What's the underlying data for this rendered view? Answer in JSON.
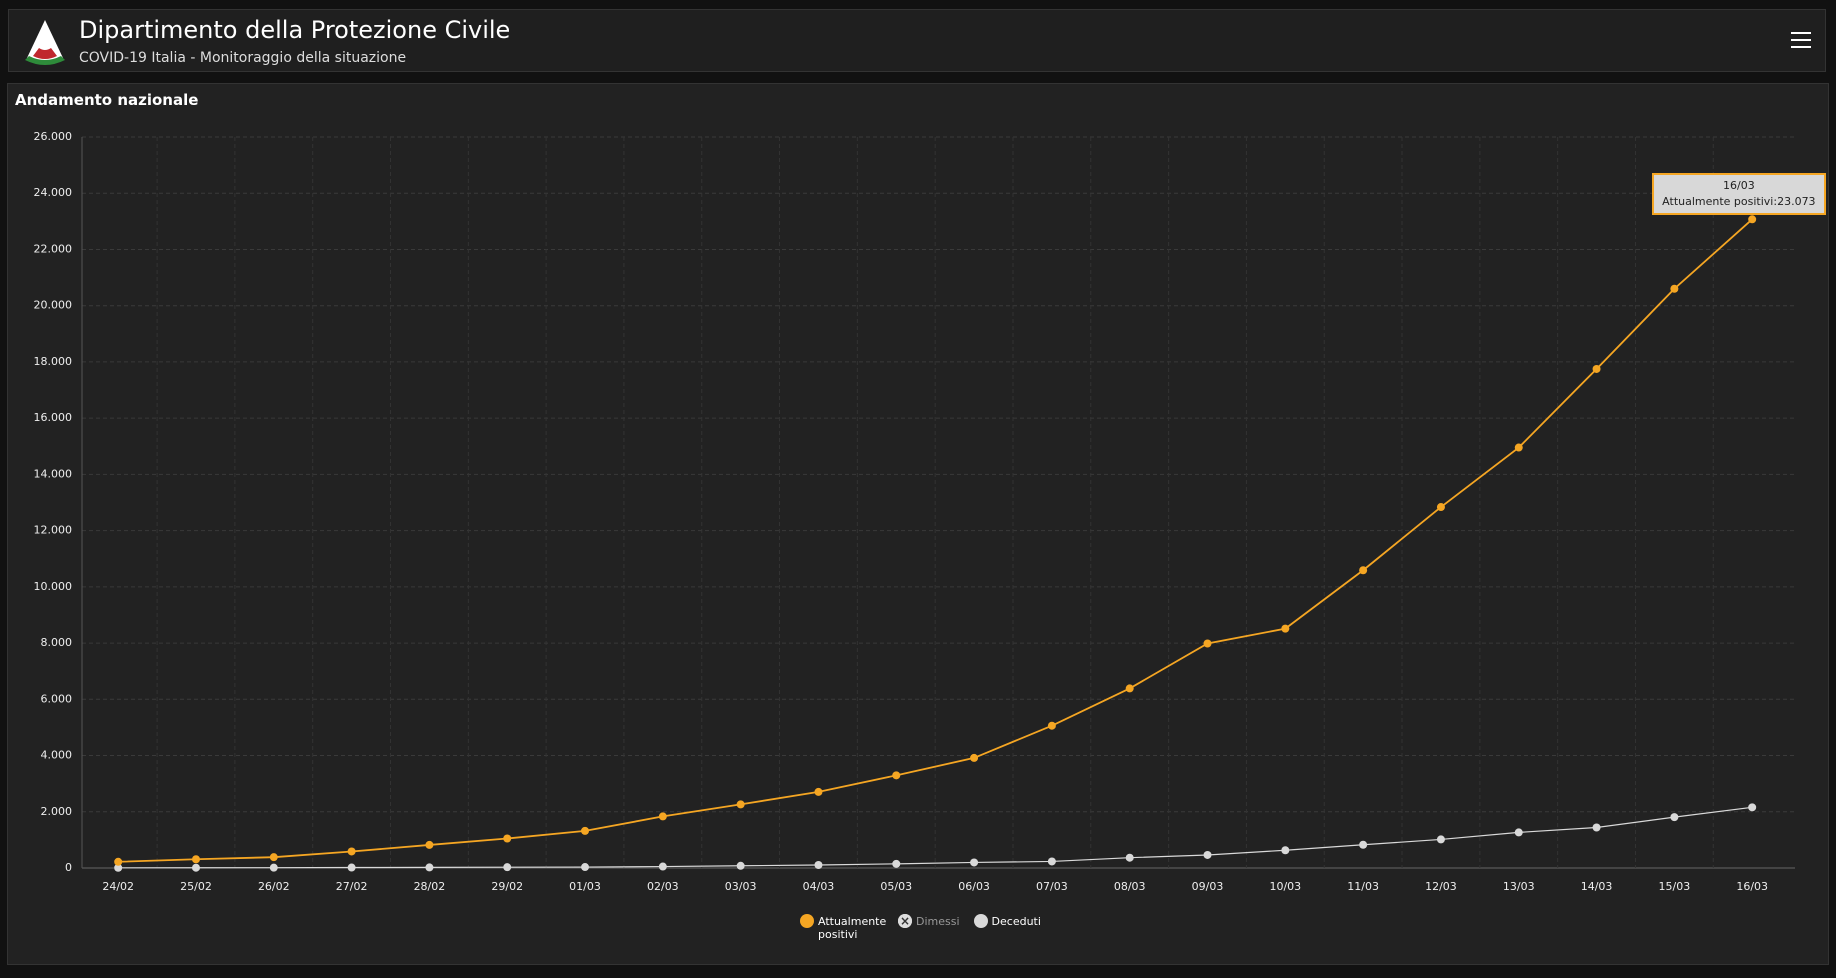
{
  "header": {
    "title": "Dipartimento della Protezione Civile",
    "subtitle": "COVID-19 Italia - Monitoraggio della situazione"
  },
  "panel_title": "Andamento nazionale",
  "tooltip": {
    "title": "16/03",
    "text": "Attualmente positivi:23.073"
  },
  "chart_data": {
    "type": "line",
    "categories": [
      "24/02",
      "25/02",
      "26/02",
      "27/02",
      "28/02",
      "29/02",
      "01/03",
      "02/03",
      "03/03",
      "04/03",
      "05/03",
      "06/03",
      "07/03",
      "08/03",
      "09/03",
      "10/03",
      "11/03",
      "12/03",
      "13/03",
      "14/03",
      "15/03",
      "16/03"
    ],
    "series": [
      {
        "name": "Attualmente positivi",
        "color": "#f5a623",
        "values": [
          221,
          311,
          385,
          588,
          821,
          1049,
          1320,
          1835,
          2263,
          2706,
          3296,
          3916,
          5061,
          6387,
          7985,
          8514,
          10590,
          12839,
          14955,
          17750,
          20603,
          23073
        ]
      },
      {
        "name": "Dimessi",
        "color": "#cccccc",
        "hidden": true
      },
      {
        "name": "Deceduti",
        "color": "#d9d9d9",
        "values": [
          7,
          10,
          12,
          17,
          21,
          29,
          34,
          52,
          79,
          107,
          148,
          197,
          233,
          366,
          463,
          631,
          827,
          1016,
          1266,
          1441,
          1809,
          2158
        ]
      }
    ],
    "ylim": [
      0,
      26000
    ],
    "yticks": [
      0,
      {
        "value": 2000,
        "label": "2.000"
      },
      {
        "value": 4000,
        "label": "4.000"
      },
      {
        "value": 6000,
        "label": "6.000"
      },
      {
        "value": 8000,
        "label": "8.000"
      },
      {
        "value": 10000,
        "label": "10.000"
      },
      {
        "value": 12000,
        "label": "12.000"
      },
      {
        "value": 14000,
        "label": "14.000"
      },
      {
        "value": 16000,
        "label": "16.000"
      },
      {
        "value": 18000,
        "label": "18.000"
      },
      {
        "value": 20000,
        "label": "20.000"
      },
      {
        "value": 22000,
        "label": "22.000"
      },
      {
        "value": 24000,
        "label": "24.000"
      },
      {
        "value": 26000,
        "label": "26.000"
      }
    ],
    "grid": true,
    "legend": "bottom"
  }
}
